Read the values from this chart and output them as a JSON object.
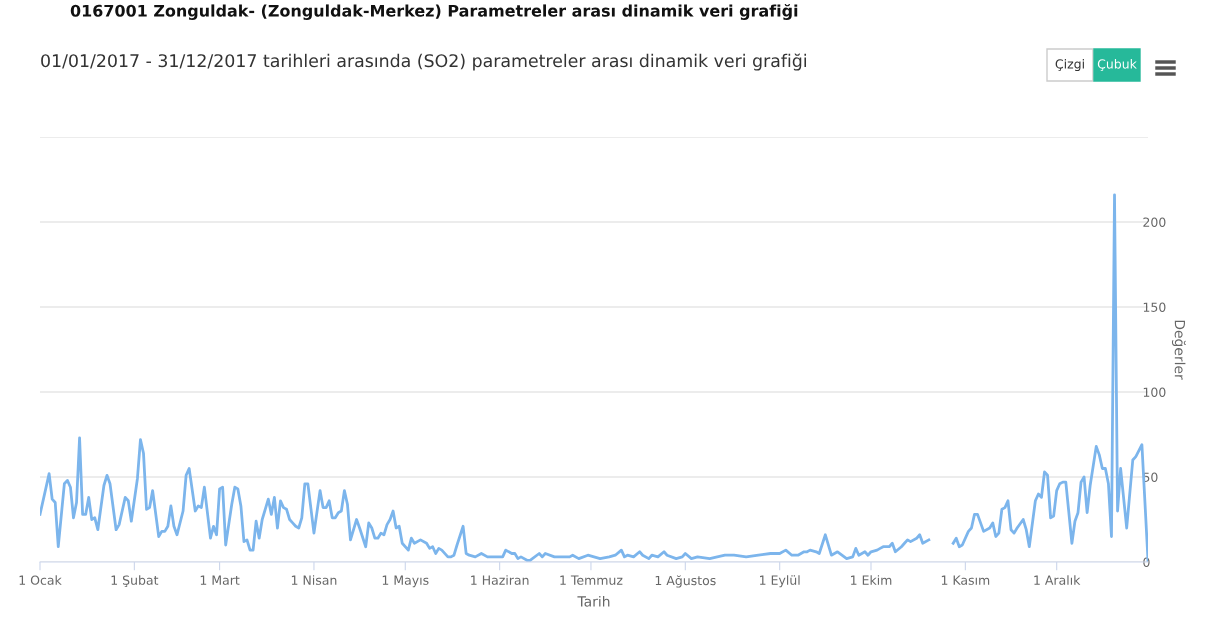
{
  "chart_data": {
    "type": "line",
    "title": "0167001 Zonguldak- (Zonguldak-Merkez) Parametreler arası dinamik veri grafiği",
    "subtitle": "01/01/2017 - 31/12/2017 tarihleri arasında (SO2) parametreler arası dinamik veri grafiği",
    "xlabel": "Tarih",
    "ylabel": "Değerler",
    "annotations": [
      "Çizgi",
      "Çubuk"
    ],
    "x": [
      "2017-01-01",
      "2017-01-04",
      "2017-01-05",
      "2017-01-06",
      "2017-01-07",
      "2017-01-09",
      "2017-01-10",
      "2017-01-11",
      "2017-01-12",
      "2017-01-13",
      "2017-01-14",
      "2017-01-15",
      "2017-01-16",
      "2017-01-17",
      "2017-01-18",
      "2017-01-19",
      "2017-01-20",
      "2017-01-22",
      "2017-01-23",
      "2017-01-24",
      "2017-01-26",
      "2017-01-27",
      "2017-01-29",
      "2017-01-30",
      "2017-01-31",
      "2017-02-02",
      "2017-02-03",
      "2017-02-04",
      "2017-02-05",
      "2017-02-06",
      "2017-02-07",
      "2017-02-09",
      "2017-02-10",
      "2017-02-11",
      "2017-02-12",
      "2017-02-13",
      "2017-02-14",
      "2017-02-15",
      "2017-02-17",
      "2017-02-18",
      "2017-02-19",
      "2017-02-21",
      "2017-02-22",
      "2017-02-23",
      "2017-02-24",
      "2017-02-26",
      "2017-02-27",
      "2017-02-28",
      "2017-03-01",
      "2017-03-02",
      "2017-03-03",
      "2017-03-05",
      "2017-03-06",
      "2017-03-07",
      "2017-03-08",
      "2017-03-09",
      "2017-03-10",
      "2017-03-11",
      "2017-03-12",
      "2017-03-13",
      "2017-03-14",
      "2017-03-15",
      "2017-03-17",
      "2017-03-18",
      "2017-03-19",
      "2017-03-20",
      "2017-03-21",
      "2017-03-22",
      "2017-03-23",
      "2017-03-24",
      "2017-03-25",
      "2017-03-26",
      "2017-03-27",
      "2017-03-28",
      "2017-03-29",
      "2017-03-30",
      "2017-04-01",
      "2017-04-03",
      "2017-04-04",
      "2017-04-05",
      "2017-04-06",
      "2017-04-07",
      "2017-04-08",
      "2017-04-09",
      "2017-04-10",
      "2017-04-11",
      "2017-04-12",
      "2017-04-13",
      "2017-04-15",
      "2017-04-16",
      "2017-04-18",
      "2017-04-19",
      "2017-04-20",
      "2017-04-21",
      "2017-04-22",
      "2017-04-23",
      "2017-04-24",
      "2017-04-25",
      "2017-04-26",
      "2017-04-27",
      "2017-04-28",
      "2017-04-29",
      "2017-04-30",
      "2017-05-02",
      "2017-05-03",
      "2017-05-04",
      "2017-05-06",
      "2017-05-08",
      "2017-05-09",
      "2017-05-10",
      "2017-05-11",
      "2017-05-12",
      "2017-05-13",
      "2017-05-15",
      "2017-05-16",
      "2017-05-17",
      "2017-05-18",
      "2017-05-20",
      "2017-05-21",
      "2017-05-22",
      "2017-05-24",
      "2017-05-26",
      "2017-05-28",
      "2017-05-31",
      "2017-06-02",
      "2017-06-03",
      "2017-06-05",
      "2017-06-06",
      "2017-06-07",
      "2017-06-08",
      "2017-06-10",
      "2017-06-11",
      "2017-06-14",
      "2017-06-15",
      "2017-06-16",
      "2017-06-19",
      "2017-06-24",
      "2017-06-25",
      "2017-06-27",
      "2017-06-30",
      "2017-07-02",
      "2017-07-04",
      "2017-07-07",
      "2017-07-09",
      "2017-07-11",
      "2017-07-12",
      "2017-07-13",
      "2017-07-15",
      "2017-07-17",
      "2017-07-18",
      "2017-07-20",
      "2017-07-21",
      "2017-07-23",
      "2017-07-25",
      "2017-07-26",
      "2017-07-29",
      "2017-07-31",
      "2017-08-01",
      "2017-08-03",
      "2017-08-05",
      "2017-08-09",
      "2017-08-14",
      "2017-08-17",
      "2017-08-21",
      "2017-08-25",
      "2017-08-29",
      "2017-08-31",
      "2017-09-01",
      "2017-09-03",
      "2017-09-05",
      "2017-09-07",
      "2017-09-09",
      "2017-09-10",
      "2017-09-11",
      "2017-09-13",
      "2017-09-14",
      "2017-09-16",
      "2017-09-18",
      "2017-09-20",
      "2017-09-23",
      "2017-09-25",
      "2017-09-26",
      "2017-09-27",
      "2017-09-29",
      "2017-09-30",
      "2017-10-01",
      "2017-10-03",
      "2017-10-04",
      "2017-10-05",
      "2017-10-07",
      "2017-10-08",
      "2017-10-09",
      "2017-10-11",
      "2017-10-12",
      "2017-10-13",
      "2017-10-14",
      "2017-10-16",
      "2017-10-17",
      "2017-10-18",
      "2017-10-20",
      "2017-10-24",
      "2017-10-28",
      "2017-10-29",
      "2017-10-30",
      "2017-10-31",
      "2017-11-02",
      "2017-11-03",
      "2017-11-04",
      "2017-11-05",
      "2017-11-07",
      "2017-11-09",
      "2017-11-10",
      "2017-11-11",
      "2017-11-12",
      "2017-11-13",
      "2017-11-14",
      "2017-11-15",
      "2017-11-16",
      "2017-11-17",
      "2017-11-18",
      "2017-11-20",
      "2017-11-21",
      "2017-11-22",
      "2017-11-24",
      "2017-11-25",
      "2017-11-26",
      "2017-11-27",
      "2017-11-28",
      "2017-11-29",
      "2017-11-30",
      "2017-12-01",
      "2017-12-02",
      "2017-12-03",
      "2017-12-04",
      "2017-12-06",
      "2017-12-07",
      "2017-12-08",
      "2017-12-09",
      "2017-12-10",
      "2017-12-11",
      "2017-12-12",
      "2017-12-14",
      "2017-12-15",
      "2017-12-16",
      "2017-12-17",
      "2017-12-18",
      "2017-12-19",
      "2017-12-20",
      "2017-12-21",
      "2017-12-22",
      "2017-12-24",
      "2017-12-26",
      "2017-12-27",
      "2017-12-29",
      "2017-12-31"
    ],
    "series": [
      {
        "color": "#7cb5ec",
        "values": [
          28,
          52,
          37,
          35,
          9,
          46,
          48,
          44,
          26,
          35,
          73,
          28,
          28,
          38,
          25,
          26,
          19,
          45,
          51,
          46,
          19,
          22,
          38,
          36,
          24,
          49,
          72,
          64,
          31,
          32,
          42,
          15,
          18,
          18,
          21,
          33,
          21,
          16,
          30,
          51,
          55,
          30,
          33,
          32,
          44,
          14,
          21,
          16,
          43,
          44,
          10,
          34,
          44,
          43,
          33,
          12,
          13,
          7,
          7,
          24,
          14,
          25,
          37,
          28,
          38,
          20,
          36,
          32,
          31,
          25,
          23,
          21,
          20,
          26,
          46,
          46,
          17,
          42,
          32,
          32,
          36,
          26,
          26,
          29,
          30,
          42,
          34,
          13,
          25,
          20,
          9,
          23,
          20,
          14,
          14,
          17,
          16,
          22,
          25,
          30,
          20,
          21,
          11,
          7,
          14,
          11,
          13,
          11,
          8,
          9,
          5,
          8,
          7,
          3,
          3,
          4,
          10,
          21,
          5,
          4,
          3,
          5,
          3,
          3,
          3,
          7,
          5,
          5,
          2,
          3,
          1,
          1,
          5,
          3,
          5,
          3,
          3,
          4,
          2,
          4,
          3,
          2,
          3,
          4,
          7,
          3,
          4,
          3,
          6,
          4,
          2,
          4,
          3,
          6,
          4,
          2,
          3,
          5,
          2,
          3,
          2,
          4,
          4,
          3,
          4,
          5,
          5,
          5,
          7,
          4,
          4,
          6,
          6,
          7,
          6,
          5,
          16,
          4,
          6,
          2,
          3,
          8,
          4,
          6,
          4,
          6,
          7,
          8,
          9,
          9,
          11,
          6,
          9,
          11,
          13,
          12,
          14,
          16,
          11,
          13,
          null,
          11,
          14,
          9,
          10,
          18,
          20,
          28,
          28,
          18,
          20,
          23,
          15,
          17,
          31,
          32,
          36,
          19,
          17,
          20,
          25,
          19,
          9,
          36,
          40,
          38,
          53,
          51,
          26,
          27,
          42,
          46,
          47,
          47,
          11,
          24,
          29,
          47,
          50,
          29,
          45,
          68,
          63,
          55,
          55,
          46,
          15,
          216,
          30,
          55,
          20,
          60,
          62,
          69,
          1
        ]
      }
    ],
    "xlim": [
      "2017-01-01",
      "2017-12-31"
    ],
    "xticks": [
      {
        "value": "2017-01-01",
        "label": "1 Ocak"
      },
      {
        "value": "2017-02-01",
        "label": "1 Şubat"
      },
      {
        "value": "2017-03-01",
        "label": "1 Mart"
      },
      {
        "value": "2017-04-01",
        "label": "1 Nisan"
      },
      {
        "value": "2017-05-01",
        "label": "1 Mayıs"
      },
      {
        "value": "2017-06-01",
        "label": "1 Haziran"
      },
      {
        "value": "2017-07-01",
        "label": "1 Temmuz"
      },
      {
        "value": "2017-08-01",
        "label": "1 Ağustos"
      },
      {
        "value": "2017-09-01",
        "label": "1 Eylül"
      },
      {
        "value": "2017-10-01",
        "label": "1 Ekim"
      },
      {
        "value": "2017-11-01",
        "label": "1 Kasım"
      },
      {
        "value": "2017-12-01",
        "label": "1 Aralık"
      }
    ],
    "ylim": [
      0,
      250
    ],
    "yticks": [
      0,
      50,
      100,
      150,
      200,
      {
        "value": 250,
        "label": null
      }
    ],
    "grid": "y",
    "legend": false,
    "marker": "none",
    "line_style": "solid"
  }
}
